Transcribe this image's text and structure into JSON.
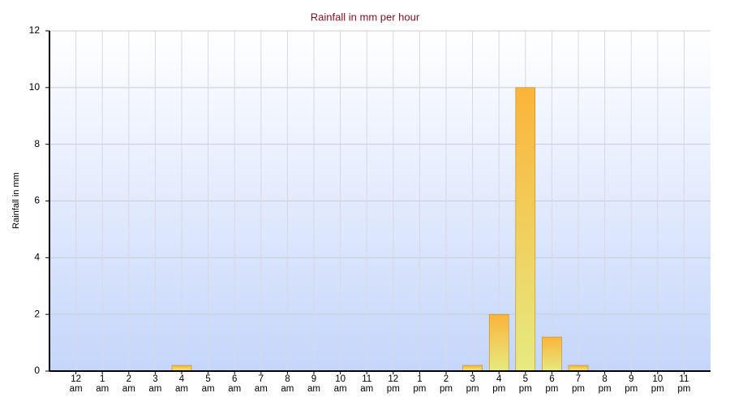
{
  "chart_data": {
    "type": "bar",
    "title": "Rainfall in mm per hour",
    "y_label": "Rainfall in mm",
    "categories": [
      "12 am",
      "1 am",
      "2 am",
      "3 am",
      "4 am",
      "5 am",
      "6 am",
      "7 am",
      "8 am",
      "9 am",
      "10 am",
      "11 am",
      "12 pm",
      "1 pm",
      "2 pm",
      "3 pm",
      "4 pm",
      "5 pm",
      "6 pm",
      "7 pm",
      "8 pm",
      "9 pm",
      "10 pm",
      "11 pm"
    ],
    "values": [
      0,
      0,
      0,
      0,
      0.2,
      0,
      0,
      0,
      0,
      0,
      0,
      0,
      0,
      0,
      0,
      0.2,
      2,
      10,
      1.2,
      0.2,
      0,
      0,
      0,
      0
    ],
    "color": "#f9b233",
    "ylim": [
      0,
      12
    ],
    "yticks": [
      0,
      2,
      4,
      6,
      8,
      10,
      12
    ],
    "grid": true
  }
}
